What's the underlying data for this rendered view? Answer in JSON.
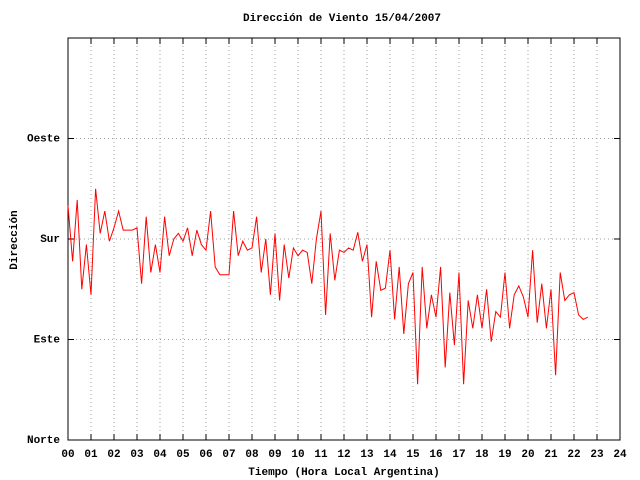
{
  "chart_data": {
    "type": "line",
    "title": "Dirección de Viento 15/04/2007",
    "xlabel": "Tiempo (Hora Local Argentina)",
    "ylabel": "Dirección",
    "color": "#ff0000",
    "grid": true,
    "xlim": [
      0,
      24
    ],
    "ylim": [
      0,
      360
    ],
    "xticks": [
      {
        "value": 0,
        "label": "00"
      },
      {
        "value": 1,
        "label": "01"
      },
      {
        "value": 2,
        "label": "02"
      },
      {
        "value": 3,
        "label": "03"
      },
      {
        "value": 4,
        "label": "04"
      },
      {
        "value": 5,
        "label": "05"
      },
      {
        "value": 6,
        "label": "06"
      },
      {
        "value": 7,
        "label": "07"
      },
      {
        "value": 8,
        "label": "08"
      },
      {
        "value": 9,
        "label": "09"
      },
      10,
      11,
      12,
      13,
      14,
      15,
      16,
      17,
      18,
      19,
      20,
      21,
      22,
      23,
      24
    ],
    "yticks": [
      {
        "value": 0,
        "label": "Norte"
      },
      {
        "value": 90,
        "label": "Este"
      },
      {
        "value": 180,
        "label": "Sur"
      },
      {
        "value": 270,
        "label": "Oeste"
      }
    ],
    "x": [
      0,
      0.2,
      0.4,
      0.6,
      0.8,
      1,
      1.2,
      1.4,
      1.6,
      1.8,
      2,
      2.2,
      2.4,
      2.6,
      2.8,
      3,
      3.2,
      3.4,
      3.6,
      3.8,
      4,
      4.2,
      4.4,
      4.6,
      4.8,
      5,
      5.2,
      5.4,
      5.6,
      5.8,
      6,
      6.2,
      6.4,
      6.6,
      6.8,
      7,
      7.2,
      7.4,
      7.6,
      7.8,
      8,
      8.2,
      8.4,
      8.6,
      8.8,
      9,
      9.2,
      9.4,
      9.6,
      9.8,
      10,
      10.2,
      10.4,
      10.6,
      10.8,
      11,
      11.2,
      11.4,
      11.6,
      11.8,
      12,
      12.2,
      12.4,
      12.6,
      12.8,
      13,
      13.2,
      13.4,
      13.6,
      13.8,
      14,
      14.2,
      14.4,
      14.6,
      14.8,
      15,
      15.2,
      15.4,
      15.6,
      15.8,
      16,
      16.2,
      16.4,
      16.6,
      16.8,
      17,
      17.2,
      17.4,
      17.6,
      17.8,
      18,
      18.2,
      18.4,
      18.6,
      18.8,
      19,
      19.2,
      19.4,
      19.6,
      19.8,
      20,
      20.2,
      20.4,
      20.6,
      20.8,
      21,
      21.2,
      21.4,
      21.6,
      21.8,
      22,
      22.2,
      22.4,
      22.6
    ],
    "values": [
      210,
      160,
      215,
      135,
      175,
      130,
      225,
      185,
      205,
      178,
      190,
      205,
      188,
      188,
      188,
      190,
      140,
      200,
      150,
      175,
      150,
      200,
      165,
      180,
      185,
      178,
      190,
      165,
      188,
      175,
      170,
      205,
      155,
      148,
      148,
      148,
      205,
      165,
      178,
      170,
      172,
      200,
      150,
      180,
      130,
      185,
      125,
      175,
      145,
      172,
      165,
      170,
      168,
      140,
      180,
      205,
      112,
      185,
      143,
      170,
      168,
      172,
      170,
      186,
      160,
      175,
      110,
      160,
      134,
      136,
      170,
      108,
      155,
      95,
      140,
      150,
      50,
      155,
      100,
      130,
      110,
      155,
      65,
      132,
      85,
      150,
      50,
      125,
      100,
      130,
      100,
      135,
      88,
      115,
      110,
      150,
      100,
      130,
      138,
      128,
      110,
      170,
      105,
      140,
      100,
      135,
      58,
      150,
      125,
      130,
      132,
      112,
      108,
      110
    ]
  }
}
